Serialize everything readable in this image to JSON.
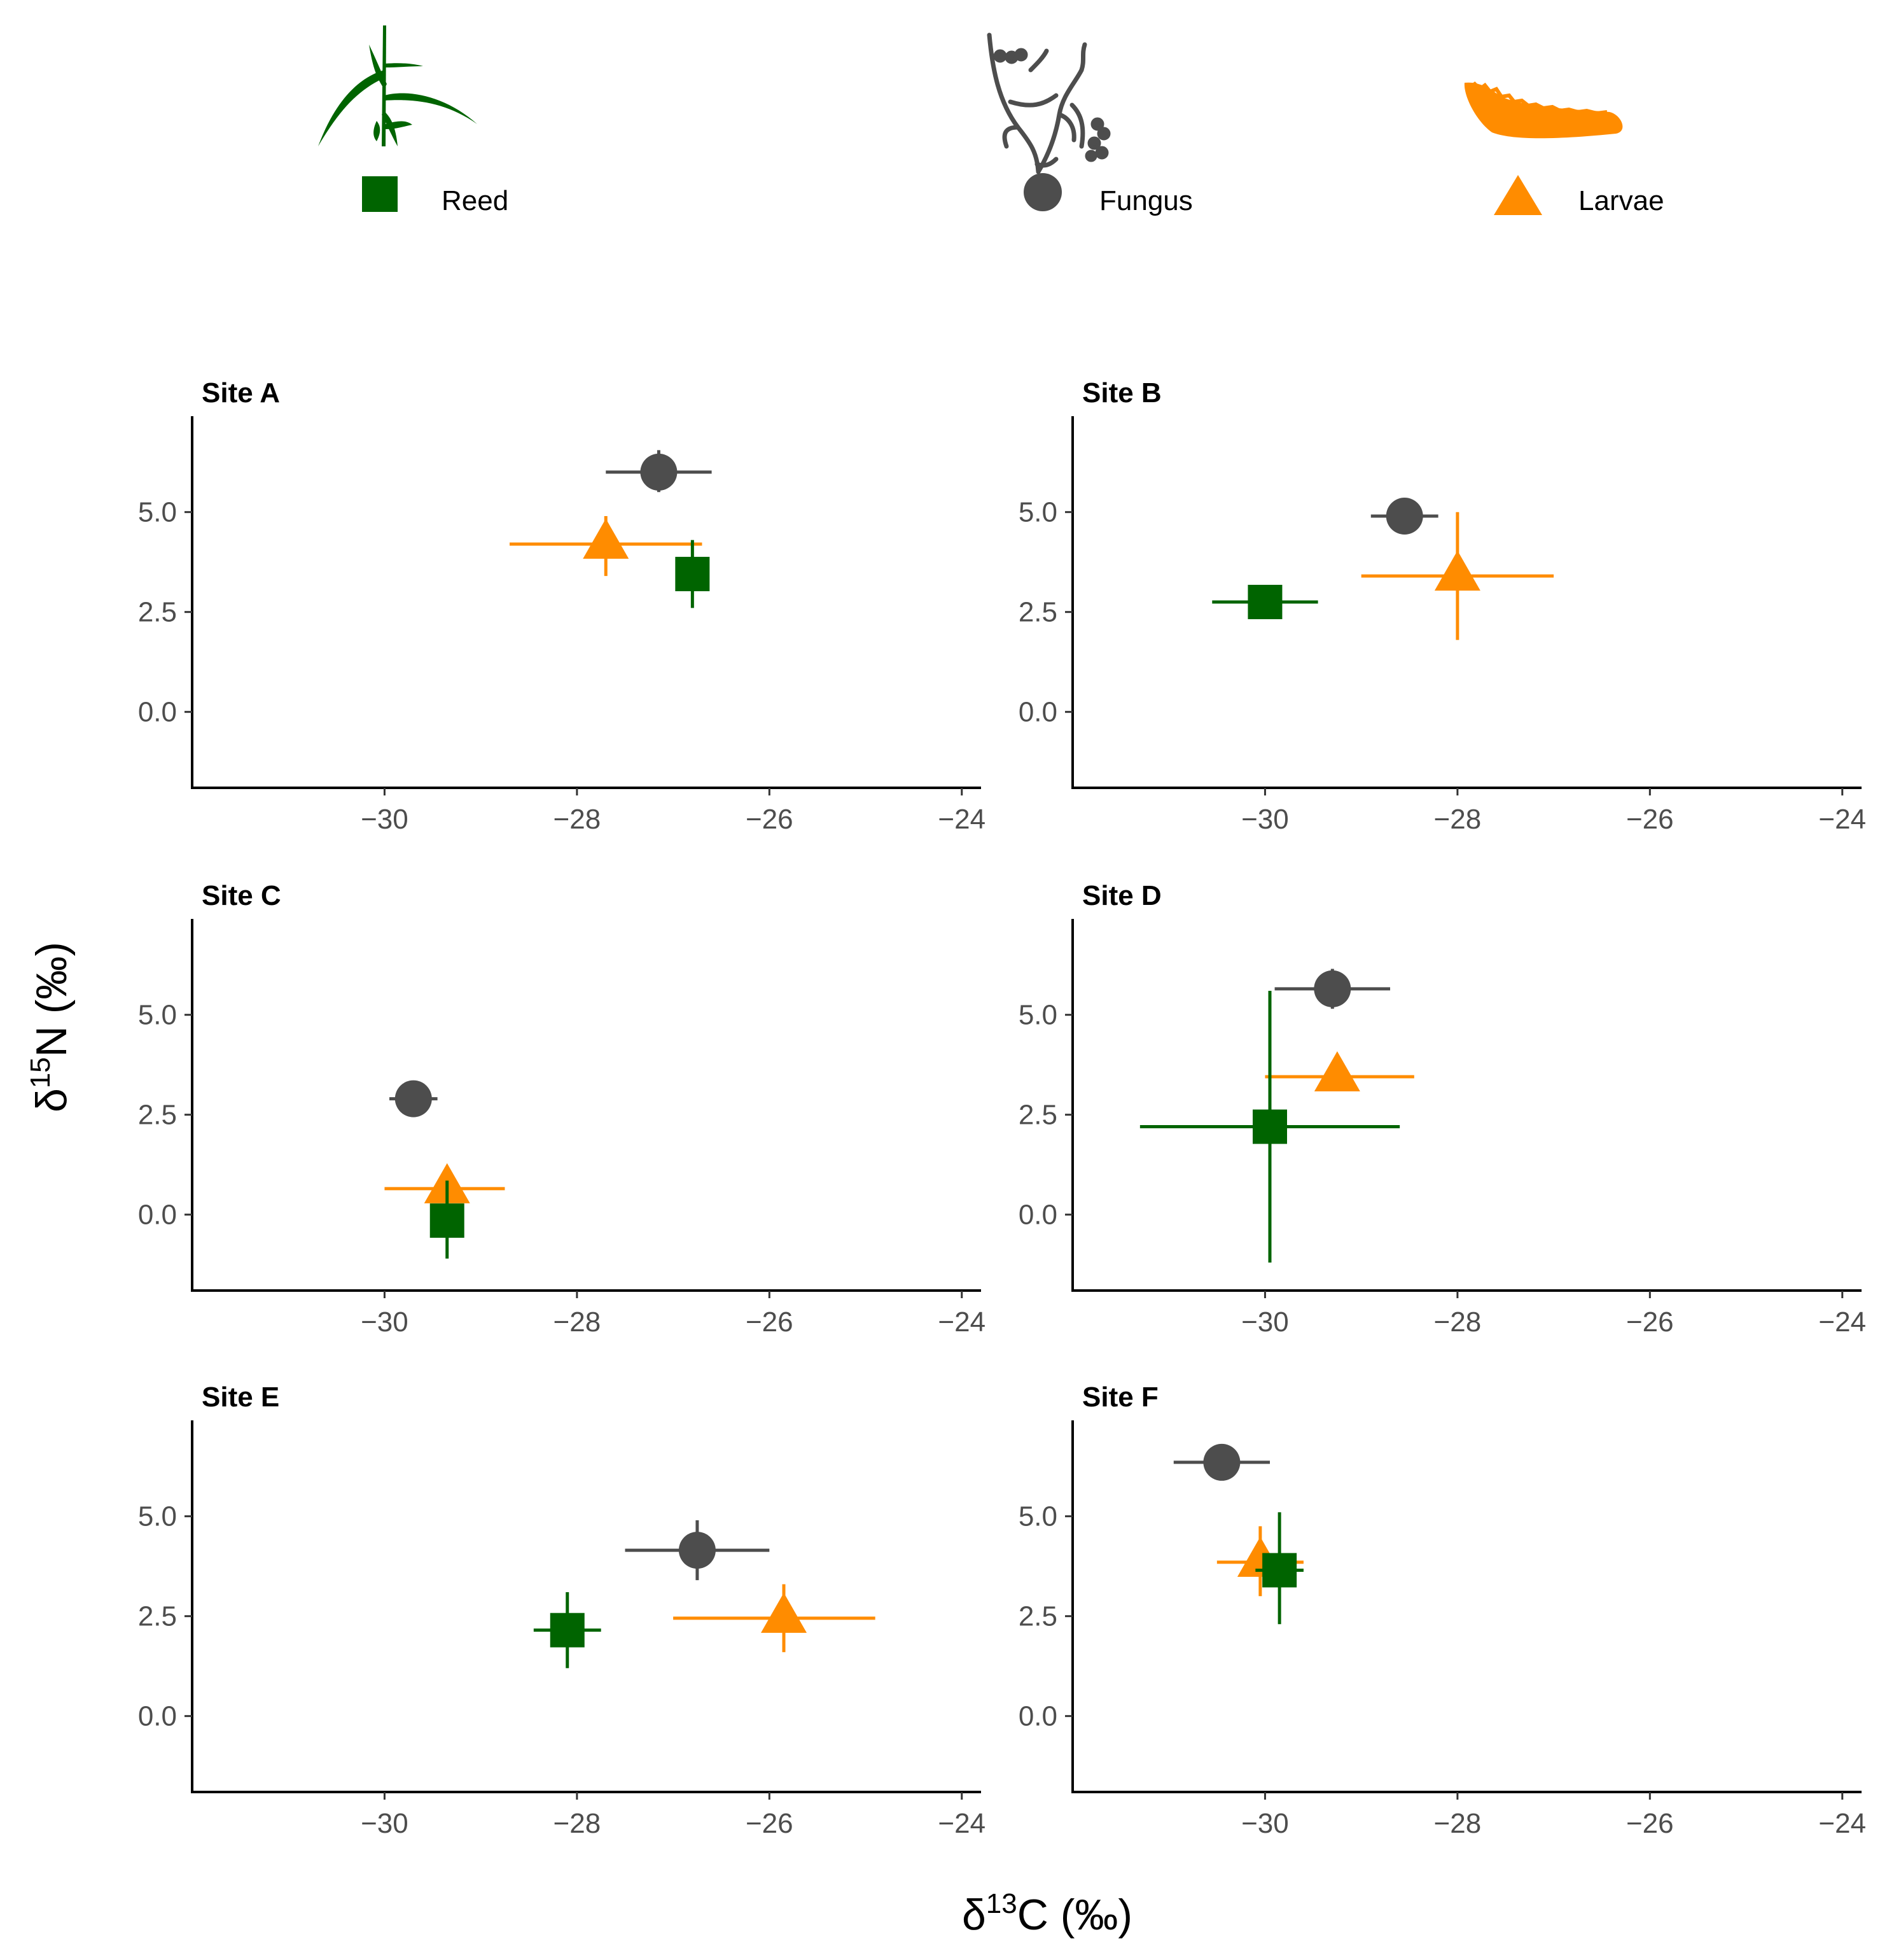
{
  "chart_data": {
    "type": "scatter",
    "xlabel_parts": [
      "δ",
      "13",
      "C (‰)"
    ],
    "ylabel_parts": [
      "δ",
      "15",
      "N (‰)"
    ],
    "xlim": [
      -32,
      -23.8
    ],
    "ylim": [
      -1.9,
      7.4
    ],
    "xticks": [
      -30,
      -28,
      -26,
      -24
    ],
    "xtick_labels": [
      "−30",
      "−28",
      "−26",
      "−24"
    ],
    "yticks": [
      0,
      2.5,
      5
    ],
    "ytick_labels": [
      "0.0",
      "2.5",
      "5.0"
    ],
    "legend": [
      {
        "label": "Reed",
        "shape": "square",
        "color": "#006400",
        "icon": "reed-plant-icon"
      },
      {
        "label": "Fungus",
        "shape": "circle",
        "color": "#4d4d4d",
        "icon": "fungus-hyphae-icon"
      },
      {
        "label": "Larvae",
        "shape": "triangle",
        "color": "#ff8c00",
        "icon": "larva-icon"
      }
    ],
    "panels": [
      {
        "title": "Site A",
        "points": [
          {
            "group": "Fungus",
            "x": -27.15,
            "y": 6.0,
            "xmin": -27.7,
            "xmax": -26.6,
            "ymin": 5.5,
            "ymax": 6.55
          },
          {
            "group": "Larvae",
            "x": -27.7,
            "y": 4.2,
            "xmin": -28.7,
            "xmax": -26.7,
            "ymin": 3.4,
            "ymax": 4.9
          },
          {
            "group": "Reed",
            "x": -26.8,
            "y": 3.45,
            "xmin": -26.8,
            "xmax": -26.8,
            "ymin": 2.6,
            "ymax": 4.3
          }
        ]
      },
      {
        "title": "Site B",
        "points": [
          {
            "group": "Fungus",
            "x": -28.55,
            "y": 4.9,
            "xmin": -28.9,
            "xmax": -28.2,
            "ymin": 4.9,
            "ymax": 4.9
          },
          {
            "group": "Larvae",
            "x": -28.0,
            "y": 3.4,
            "xmin": -29.0,
            "xmax": -27.0,
            "ymin": 1.8,
            "ymax": 5.0
          },
          {
            "group": "Reed",
            "x": -30.0,
            "y": 2.75,
            "xmin": -30.55,
            "xmax": -29.45,
            "ymin": 2.75,
            "ymax": 2.75
          }
        ]
      },
      {
        "title": "Site C",
        "points": [
          {
            "group": "Fungus",
            "x": -29.7,
            "y": 2.9,
            "xmin": -29.95,
            "xmax": -29.45,
            "ymin": 2.9,
            "ymax": 2.9
          },
          {
            "group": "Larvae",
            "x": -29.35,
            "y": 0.65,
            "xmin": -30.0,
            "xmax": -28.75,
            "ymin": 0.65,
            "ymax": 0.65
          },
          {
            "group": "Reed",
            "x": -29.35,
            "y": -0.15,
            "xmin": -29.35,
            "xmax": -29.35,
            "ymin": -1.1,
            "ymax": 0.85
          }
        ]
      },
      {
        "title": "Site D",
        "points": [
          {
            "group": "Fungus",
            "x": -29.3,
            "y": 5.65,
            "xmin": -29.9,
            "xmax": -28.7,
            "ymin": 5.15,
            "ymax": 6.15
          },
          {
            "group": "Larvae",
            "x": -29.25,
            "y": 3.45,
            "xmin": -30.0,
            "xmax": -28.45,
            "ymin": 3.45,
            "ymax": 3.45
          },
          {
            "group": "Reed",
            "x": -29.95,
            "y": 2.2,
            "xmin": -31.3,
            "xmax": -28.6,
            "ymin": -1.2,
            "ymax": 5.6
          }
        ]
      },
      {
        "title": "Site E",
        "points": [
          {
            "group": "Fungus",
            "x": -26.75,
            "y": 4.15,
            "xmin": -27.5,
            "xmax": -26.0,
            "ymin": 3.4,
            "ymax": 4.9
          },
          {
            "group": "Larvae",
            "x": -25.85,
            "y": 2.45,
            "xmin": -27.0,
            "xmax": -24.9,
            "ymin": 1.6,
            "ymax": 3.3
          },
          {
            "group": "Reed",
            "x": -28.1,
            "y": 2.15,
            "xmin": -28.45,
            "xmax": -27.75,
            "ymin": 1.2,
            "ymax": 3.1
          }
        ]
      },
      {
        "title": "Site F",
        "points": [
          {
            "group": "Fungus",
            "x": -30.45,
            "y": 6.35,
            "xmin": -30.95,
            "xmax": -29.95,
            "ymin": 6.35,
            "ymax": 6.35
          },
          {
            "group": "Larvae",
            "x": -30.05,
            "y": 3.85,
            "xmin": -30.5,
            "xmax": -29.6,
            "ymin": 3.0,
            "ymax": 4.75
          },
          {
            "group": "Reed",
            "x": -29.85,
            "y": 3.65,
            "xmin": -30.1,
            "xmax": -29.6,
            "ymin": 2.3,
            "ymax": 5.1
          }
        ]
      }
    ]
  }
}
